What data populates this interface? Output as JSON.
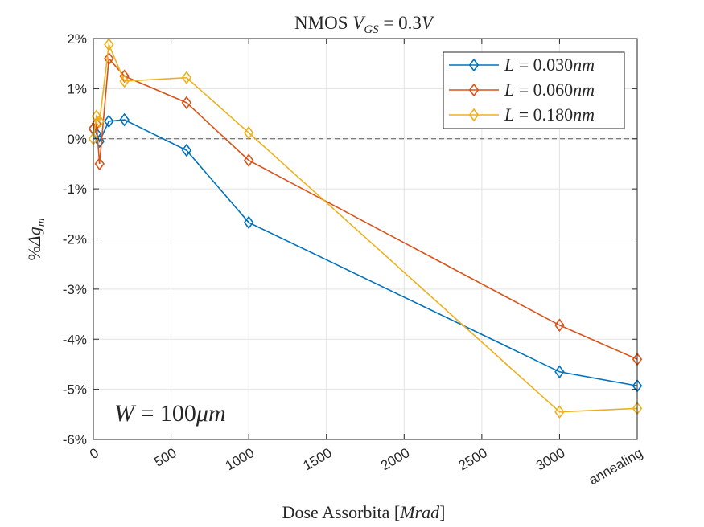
{
  "chart_data": {
    "type": "line",
    "title": "NMOS V_GS = 0.3V",
    "title_parts": {
      "main": "NMOS ",
      "v": "V",
      "sub": "GS",
      "rest": " = 0.3",
      "unit": "V"
    },
    "xlabel": "Dose Assorbita [Mrad]",
    "xlabel_parts": {
      "main": "Dose Assorbita [",
      "unit": "Mrad",
      "close": "]"
    },
    "ylabel": "%Δg_m",
    "ylabel_parts": {
      "pct": "%",
      "delta": "Δg",
      "sub": "m"
    },
    "annotation": "W = 100μm",
    "annotation_parts": {
      "w": "W",
      "eq": " = 100",
      "mu": "μm"
    },
    "xlim": [
      0,
      3500
    ],
    "ylim": [
      -6,
      2
    ],
    "grid": true,
    "legend_position": "top-right",
    "x_ticks": [
      {
        "value": 0,
        "label": "0"
      },
      {
        "value": 500,
        "label": "500"
      },
      {
        "value": 1000,
        "label": "1000"
      },
      {
        "value": 1500,
        "label": "1500"
      },
      {
        "value": 2000,
        "label": "2000"
      },
      {
        "value": 2500,
        "label": "2500"
      },
      {
        "value": 3000,
        "label": "3000"
      },
      {
        "value": 3500,
        "label": "annealing"
      }
    ],
    "y_ticks": [
      {
        "value": 2,
        "label": "2%"
      },
      {
        "value": 1,
        "label": "1%"
      },
      {
        "value": 0,
        "label": "0%"
      },
      {
        "value": -1,
        "label": "-1%"
      },
      {
        "value": -2,
        "label": "-2%"
      },
      {
        "value": -3,
        "label": "-3%"
      },
      {
        "value": -4,
        "label": "-4%"
      },
      {
        "value": -5,
        "label": "-5%"
      },
      {
        "value": -6,
        "label": "-6%"
      }
    ],
    "reference_line": 0,
    "series": [
      {
        "name": "L = 0.030nm",
        "name_parts": {
          "l": "L",
          "eq": " = 0.030",
          "unit": "nm"
        },
        "color": "#0072BD",
        "x": [
          0,
          20,
          40,
          100,
          200,
          600,
          1000,
          3000,
          3500
        ],
        "y": [
          0.2,
          0.1,
          -0.05,
          0.35,
          0.38,
          -0.23,
          -1.67,
          -4.65,
          -4.93
        ]
      },
      {
        "name": "L = 0.060nm",
        "name_parts": {
          "l": "L",
          "eq": " = 0.060",
          "unit": "nm"
        },
        "color": "#D95319",
        "x": [
          0,
          20,
          40,
          100,
          200,
          600,
          1000,
          3000,
          3500
        ],
        "y": [
          0.2,
          0.3,
          -0.5,
          1.6,
          1.25,
          0.72,
          -0.43,
          -3.72,
          -4.4
        ]
      },
      {
        "name": "L = 0.180nm",
        "name_parts": {
          "l": "L",
          "eq": " = 0.180",
          "unit": "nm"
        },
        "color": "#EDB120",
        "x": [
          0,
          20,
          40,
          100,
          200,
          600,
          1000,
          3000,
          3500
        ],
        "y": [
          0.0,
          0.45,
          0.35,
          1.88,
          1.15,
          1.22,
          0.12,
          -5.45,
          -5.38
        ]
      }
    ]
  }
}
